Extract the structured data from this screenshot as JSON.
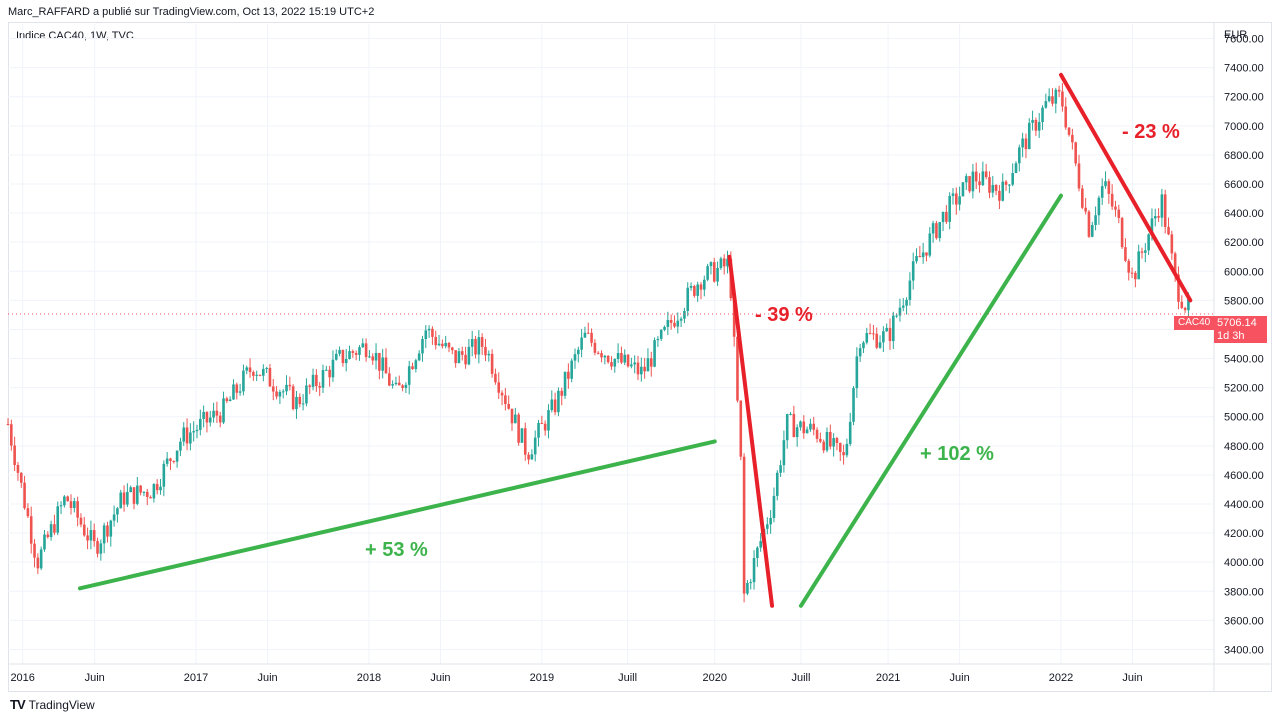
{
  "header": {
    "publisher_line": "Marc_RAFFARD a publié sur TradingView.com, Oct 13, 2022 15:19 UTC+2"
  },
  "chart_label": "Indice CAC40, 1W, TVC",
  "currency": "EUR",
  "footer": {
    "brand": "TradingView"
  },
  "last_price": {
    "symbol": "CAC40",
    "value": "5706.14",
    "countdown": "1d 3h"
  },
  "colors": {
    "up": "#26a69a",
    "down": "#ef5350",
    "trend_green": "#3cb44b",
    "trend_red": "#e8202a"
  },
  "chart_data": {
    "type": "candlestick",
    "ylim": [
      3300,
      7700
    ],
    "y_ticks": [
      3400,
      3600,
      3800,
      4000,
      4200,
      4400,
      4600,
      4800,
      5000,
      5200,
      5400,
      5600,
      5800,
      6000,
      6200,
      6400,
      6600,
      6800,
      7000,
      7200,
      7400,
      7600
    ],
    "y_tick_labels": [
      "3400.00",
      "3600.00",
      "3800.00",
      "4000.00",
      "4200.00",
      "4400.00",
      "4600.00",
      "4800.00",
      "5000.00",
      "5200.00",
      "5400.00",
      "5600.00",
      "5800.00",
      "6000.00",
      "6200.00",
      "6400.00",
      "6600.00",
      "6800.00",
      "7000.00",
      "7200.00",
      "7400.00",
      "7600.00"
    ],
    "x_ticks": [
      {
        "date": "2016-01",
        "label": "2016"
      },
      {
        "date": "2016-06",
        "label": "Juin"
      },
      {
        "date": "2017-01",
        "label": "2017"
      },
      {
        "date": "2017-06",
        "label": "Juin"
      },
      {
        "date": "2018-01",
        "label": "2018"
      },
      {
        "date": "2018-06",
        "label": "Juin"
      },
      {
        "date": "2019-01",
        "label": "2019"
      },
      {
        "date": "2019-07",
        "label": "Juill"
      },
      {
        "date": "2020-01",
        "label": "2020"
      },
      {
        "date": "2020-07",
        "label": "Juill"
      },
      {
        "date": "2021-01",
        "label": "2021"
      },
      {
        "date": "2021-06",
        "label": "Juin"
      },
      {
        "date": "2022-01",
        "label": "2022"
      },
      {
        "date": "2022-06",
        "label": "Juin"
      }
    ],
    "price_path": [
      [
        "2015-12",
        4950
      ],
      [
        "2016-02",
        4000
      ],
      [
        "2016-04",
        4450
      ],
      [
        "2016-06",
        4100
      ],
      [
        "2016-08",
        4450
      ],
      [
        "2016-10",
        4500
      ],
      [
        "2016-12",
        4850
      ],
      [
        "2017-03",
        5050
      ],
      [
        "2017-05",
        5350
      ],
      [
        "2017-08",
        5100
      ],
      [
        "2017-11",
        5400
      ],
      [
        "2018-01",
        5500
      ],
      [
        "2018-03",
        5150
      ],
      [
        "2018-05",
        5600
      ],
      [
        "2018-07",
        5400
      ],
      [
        "2018-09",
        5500
      ],
      [
        "2018-12",
        4750
      ],
      [
        "2019-02",
        5100
      ],
      [
        "2019-04",
        5550
      ],
      [
        "2019-06",
        5400
      ],
      [
        "2019-08",
        5300
      ],
      [
        "2019-10",
        5650
      ],
      [
        "2019-12",
        5950
      ],
      [
        "2020-02",
        6050
      ],
      [
        "2020-03",
        4400
      ],
      [
        "2020-03",
        3750
      ],
      [
        "2020-05",
        4400
      ],
      [
        "2020-06",
        4950
      ],
      [
        "2020-08",
        4900
      ],
      [
        "2020-10",
        4700
      ],
      [
        "2020-11",
        5550
      ],
      [
        "2021-01",
        5550
      ],
      [
        "2021-03",
        6050
      ],
      [
        "2021-05",
        6400
      ],
      [
        "2021-07",
        6650
      ],
      [
        "2021-09",
        6550
      ],
      [
        "2021-10",
        6800
      ],
      [
        "2021-12",
        7150
      ],
      [
        "2022-01",
        7200
      ],
      [
        "2022-03",
        6300
      ],
      [
        "2022-04",
        6600
      ],
      [
        "2022-05",
        6350
      ],
      [
        "2022-06",
        5950
      ],
      [
        "2022-08",
        6500
      ],
      [
        "2022-09",
        5900
      ],
      [
        "2022-10",
        5706
      ]
    ],
    "trend_lines": [
      {
        "color": "green",
        "from": [
          "2016-05",
          3820
        ],
        "to": [
          "2020-01",
          4830
        ],
        "label": "+ 53 %"
      },
      {
        "color": "red",
        "from": [
          "2020-02",
          6100
        ],
        "to": [
          "2020-05",
          3700
        ],
        "label": "- 39 %"
      },
      {
        "color": "green",
        "from": [
          "2020-07",
          3700
        ],
        "to": [
          "2022-01",
          6520
        ],
        "label": "+ 102 %"
      },
      {
        "color": "red",
        "from": [
          "2022-01",
          7350
        ],
        "to": [
          "2022-10",
          5800
        ],
        "label": "- 23 %"
      }
    ]
  }
}
